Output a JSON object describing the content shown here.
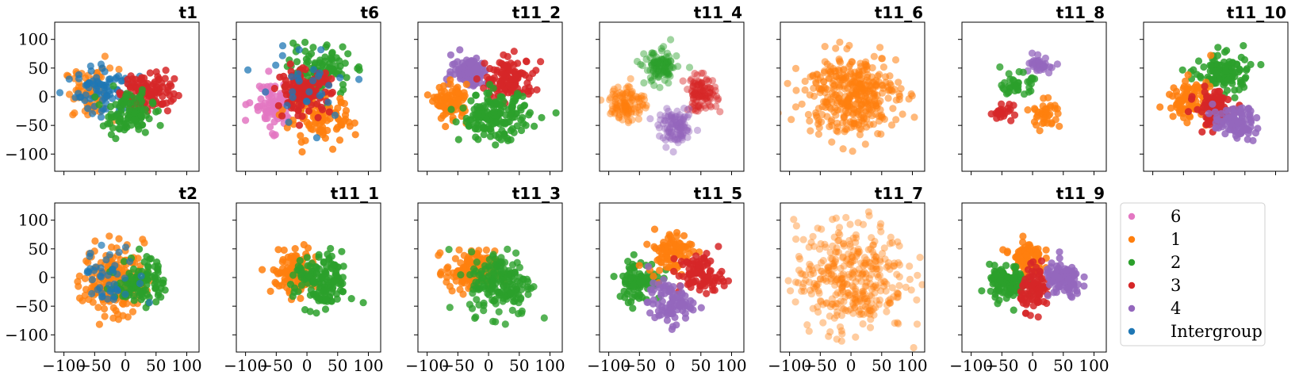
{
  "colors": {
    "6": "#e377c2",
    "1": "#ff7f0e",
    "2": "#2ca02c",
    "3": "#d62728",
    "4": "#9467bd",
    "Intergroup": "#1f77b4"
  },
  "legend": {
    "entries": [
      {
        "label": "6",
        "key": "6"
      },
      {
        "label": "1",
        "key": "1"
      },
      {
        "label": "2",
        "key": "2"
      },
      {
        "label": "3",
        "key": "3"
      },
      {
        "label": "4",
        "key": "4"
      },
      {
        "label": "Intergroup",
        "key": "Intergroup"
      }
    ]
  },
  "chart_data": {
    "type": "scatter",
    "xlim": [
      -115,
      120
    ],
    "ylim": [
      -130,
      130
    ],
    "xticks": [
      -100,
      -50,
      0,
      50,
      100
    ],
    "yticks": [
      -100,
      -50,
      0,
      50,
      100
    ],
    "xtick_labels": [
      "−100",
      "−50",
      "0",
      "50",
      "100"
    ],
    "ytick_labels": [
      "−100",
      "−50",
      "0",
      "50",
      "100"
    ],
    "tick_labels_shown": "bottom row x-axis, left column y-axis",
    "panels": [
      {
        "title": "t1",
        "groups": [
          {
            "key": "1",
            "cx": -55,
            "cy": 5,
            "sx": 22,
            "sy": 22,
            "n": 70,
            "alpha": 0.75
          },
          {
            "key": "Intergroup",
            "cx": -35,
            "cy": 10,
            "sx": 22,
            "sy": 22,
            "n": 80,
            "alpha": 0.75
          },
          {
            "key": "3",
            "cx": 35,
            "cy": 10,
            "sx": 22,
            "sy": 18,
            "n": 110,
            "alpha": 0.85
          },
          {
            "key": "2",
            "cx": 5,
            "cy": -30,
            "sx": 20,
            "sy": 18,
            "n": 100,
            "alpha": 0.85
          }
        ]
      },
      {
        "title": "t6",
        "groups": [
          {
            "key": "6",
            "cx": -55,
            "cy": -15,
            "sx": 18,
            "sy": 20,
            "n": 90,
            "alpha": 0.85
          },
          {
            "key": "2",
            "cx": 20,
            "cy": 45,
            "sx": 25,
            "sy": 22,
            "n": 110,
            "alpha": 0.85
          },
          {
            "key": "1",
            "cx": 20,
            "cy": -40,
            "sx": 28,
            "sy": 22,
            "n": 100,
            "alpha": 0.85
          },
          {
            "key": "3",
            "cx": -5,
            "cy": 10,
            "sx": 22,
            "sy": 18,
            "n": 120,
            "alpha": 0.9
          },
          {
            "key": "Intergroup",
            "cx": 0,
            "cy": 20,
            "sx": 40,
            "sy": 35,
            "n": 30,
            "alpha": 0.75
          }
        ]
      },
      {
        "title": "t11_2",
        "groups": [
          {
            "key": "4",
            "cx": -30,
            "cy": 45,
            "sx": 15,
            "sy": 13,
            "n": 110,
            "alpha": 0.85
          },
          {
            "key": "3",
            "cx": 35,
            "cy": 30,
            "sx": 20,
            "sy": 18,
            "n": 120,
            "alpha": 0.85
          },
          {
            "key": "1",
            "cx": -60,
            "cy": -10,
            "sx": 13,
            "sy": 15,
            "n": 90,
            "alpha": 0.85
          },
          {
            "key": "2",
            "cx": 10,
            "cy": -35,
            "sx": 28,
            "sy": 20,
            "n": 170,
            "alpha": 0.85
          }
        ]
      },
      {
        "title": "t11_4",
        "groups": [
          {
            "key": "2",
            "cx": -15,
            "cy": 50,
            "sx": 13,
            "sy": 15,
            "n": 110,
            "alpha": 0.45
          },
          {
            "key": "3",
            "cx": 50,
            "cy": 5,
            "sx": 13,
            "sy": 15,
            "n": 110,
            "alpha": 0.45
          },
          {
            "key": "1",
            "cx": -70,
            "cy": -10,
            "sx": 14,
            "sy": 16,
            "n": 110,
            "alpha": 0.45
          },
          {
            "key": "4",
            "cx": 10,
            "cy": -55,
            "sx": 14,
            "sy": 14,
            "n": 110,
            "alpha": 0.45
          }
        ]
      },
      {
        "title": "t11_6",
        "groups": [
          {
            "key": "1",
            "cx": 0,
            "cy": 5,
            "sx": 38,
            "sy": 35,
            "n": 380,
            "alpha": 0.55
          }
        ]
      },
      {
        "title": "t11_8",
        "groups": [
          {
            "key": "4",
            "cx": 15,
            "cy": 55,
            "sx": 10,
            "sy": 7,
            "n": 35,
            "alpha": 0.75
          },
          {
            "key": "2",
            "cx": -25,
            "cy": 20,
            "sx": 12,
            "sy": 10,
            "n": 40,
            "alpha": 0.8
          },
          {
            "key": "3",
            "cx": -50,
            "cy": -25,
            "sx": 10,
            "sy": 6,
            "n": 25,
            "alpha": 0.85
          },
          {
            "key": "1",
            "cx": 20,
            "cy": -30,
            "sx": 12,
            "sy": 12,
            "n": 40,
            "alpha": 0.8
          }
        ]
      },
      {
        "title": "t11_10",
        "groups": [
          {
            "key": "2",
            "cx": 15,
            "cy": 40,
            "sx": 22,
            "sy": 18,
            "n": 110,
            "alpha": 0.85
          },
          {
            "key": "1",
            "cx": -40,
            "cy": -5,
            "sx": 18,
            "sy": 18,
            "n": 90,
            "alpha": 0.85
          },
          {
            "key": "3",
            "cx": 0,
            "cy": -20,
            "sx": 15,
            "sy": 15,
            "n": 100,
            "alpha": 0.9
          },
          {
            "key": "4",
            "cx": 35,
            "cy": -45,
            "sx": 18,
            "sy": 14,
            "n": 90,
            "alpha": 0.85
          }
        ]
      },
      {
        "title": "t2",
        "groups": [
          {
            "key": "1",
            "cx": -20,
            "cy": -5,
            "sx": 25,
            "sy": 30,
            "n": 180,
            "alpha": 0.8
          },
          {
            "key": "2",
            "cx": 25,
            "cy": -5,
            "sx": 20,
            "sy": 22,
            "n": 100,
            "alpha": 0.85
          },
          {
            "key": "Intergroup",
            "cx": -20,
            "cy": 0,
            "sx": 25,
            "sy": 25,
            "n": 45,
            "alpha": 0.7
          }
        ]
      },
      {
        "title": "t11_1",
        "groups": [
          {
            "key": "1",
            "cx": -20,
            "cy": 10,
            "sx": 18,
            "sy": 20,
            "n": 110,
            "alpha": 0.85
          },
          {
            "key": "2",
            "cx": 25,
            "cy": -10,
            "sx": 22,
            "sy": 25,
            "n": 140,
            "alpha": 0.85
          }
        ]
      },
      {
        "title": "t11_3",
        "groups": [
          {
            "key": "1",
            "cx": -30,
            "cy": 10,
            "sx": 20,
            "sy": 18,
            "n": 140,
            "alpha": 0.8
          },
          {
            "key": "2",
            "cx": 20,
            "cy": -10,
            "sx": 25,
            "sy": 28,
            "n": 180,
            "alpha": 0.8
          }
        ]
      },
      {
        "title": "t11_5",
        "groups": [
          {
            "key": "2",
            "cx": -50,
            "cy": -5,
            "sx": 18,
            "sy": 18,
            "n": 90,
            "alpha": 0.85
          },
          {
            "key": "1",
            "cx": 0,
            "cy": 45,
            "sx": 18,
            "sy": 18,
            "n": 90,
            "alpha": 0.85
          },
          {
            "key": "3",
            "cx": 50,
            "cy": 5,
            "sx": 18,
            "sy": 18,
            "n": 90,
            "alpha": 0.85
          },
          {
            "key": "4",
            "cx": 0,
            "cy": -45,
            "sx": 18,
            "sy": 18,
            "n": 90,
            "alpha": 0.85
          }
        ]
      },
      {
        "title": "t11_7",
        "groups": [
          {
            "key": "1",
            "cx": 0,
            "cy": 0,
            "sx": 45,
            "sy": 48,
            "n": 380,
            "alpha": 0.4
          }
        ]
      },
      {
        "title": "t11_9",
        "groups": [
          {
            "key": "1",
            "cx": -10,
            "cy": 35,
            "sx": 13,
            "sy": 15,
            "n": 90,
            "alpha": 0.85
          },
          {
            "key": "2",
            "cx": -40,
            "cy": -10,
            "sx": 15,
            "sy": 15,
            "n": 110,
            "alpha": 0.85
          },
          {
            "key": "3",
            "cx": 5,
            "cy": -20,
            "sx": 12,
            "sy": 18,
            "n": 90,
            "alpha": 0.85
          },
          {
            "key": "4",
            "cx": 50,
            "cy": -5,
            "sx": 15,
            "sy": 15,
            "n": 110,
            "alpha": 0.85
          }
        ]
      }
    ]
  }
}
